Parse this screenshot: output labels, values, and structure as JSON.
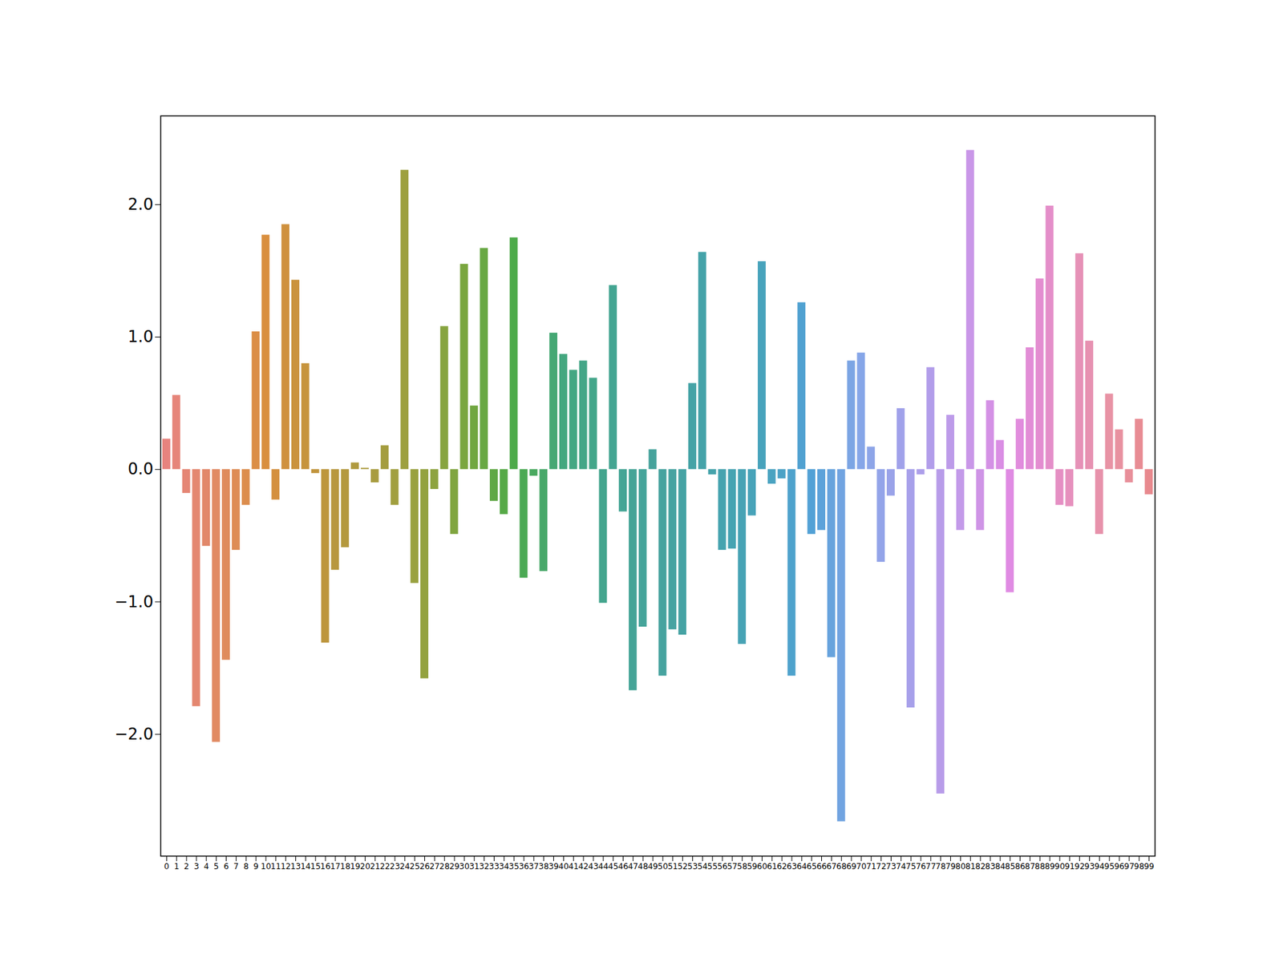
{
  "chart_data": {
    "type": "bar",
    "categories": [
      "0",
      "1",
      "2",
      "3",
      "4",
      "5",
      "6",
      "7",
      "8",
      "9",
      "10",
      "11",
      "12",
      "13",
      "14",
      "15",
      "16",
      "17",
      "18",
      "19",
      "20",
      "21",
      "22",
      "23",
      "24",
      "25",
      "26",
      "27",
      "28",
      "29",
      "30",
      "31",
      "32",
      "33",
      "34",
      "35",
      "36",
      "37",
      "38",
      "39",
      "40",
      "41",
      "42",
      "43",
      "44",
      "45",
      "46",
      "47",
      "48",
      "49",
      "50",
      "51",
      "52",
      "53",
      "54",
      "55",
      "56",
      "57",
      "58",
      "59",
      "60",
      "61",
      "62",
      "63",
      "64",
      "65",
      "66",
      "67",
      "68",
      "69",
      "70",
      "71",
      "72",
      "73",
      "74",
      "75",
      "76",
      "77",
      "78",
      "79",
      "80",
      "81",
      "82",
      "83",
      "84",
      "85",
      "86",
      "87",
      "88",
      "89",
      "90",
      "91",
      "92",
      "93",
      "94",
      "95",
      "96",
      "97",
      "98",
      "99"
    ],
    "values": [
      0.23,
      0.56,
      -0.18,
      -1.79,
      -0.58,
      -2.06,
      -1.44,
      -0.61,
      -0.27,
      1.04,
      1.77,
      -0.23,
      1.85,
      1.43,
      0.8,
      -0.03,
      -1.31,
      -0.76,
      -0.59,
      0.05,
      0.01,
      -0.1,
      0.18,
      -0.27,
      2.26,
      -0.86,
      -1.58,
      -0.15,
      1.08,
      -0.49,
      1.55,
      0.48,
      1.67,
      -0.24,
      -0.34,
      1.75,
      -0.82,
      -0.05,
      -0.77,
      1.03,
      0.87,
      0.75,
      0.82,
      0.69,
      -1.01,
      1.39,
      -0.32,
      -1.67,
      -1.19,
      0.15,
      -1.56,
      -1.21,
      -1.25,
      0.65,
      1.64,
      -0.04,
      -0.61,
      -0.6,
      -1.32,
      -0.35,
      1.57,
      -0.11,
      -0.07,
      -1.56,
      1.26,
      -0.49,
      -0.46,
      -1.42,
      -2.66,
      0.82,
      0.88,
      0.17,
      -0.7,
      -0.2,
      0.46,
      -1.8,
      -0.04,
      0.77,
      -2.45,
      0.41,
      -0.46,
      2.41,
      -0.46,
      0.52,
      0.22,
      -0.93,
      0.38,
      0.92,
      1.44,
      1.99,
      -0.27,
      -0.28,
      1.63,
      0.97,
      -0.49,
      0.57,
      0.3,
      -0.1,
      0.38,
      -0.19
    ],
    "colors": [
      "#e7837e",
      "#e6857a",
      "#e58675",
      "#e48770",
      "#e2886a",
      "#e18a63",
      "#df8b5c",
      "#de8c55",
      "#dc8d4d",
      "#db8e46",
      "#d98f3f",
      "#d4903f",
      "#cf913e",
      "#ca933e",
      "#c6943d",
      "#c1953d",
      "#bd963d",
      "#b8973e",
      "#b4993e",
      "#b09a3f",
      "#ac9b3f",
      "#a89c3f",
      "#a49d3f",
      "#a19f3f",
      "#9da03f",
      "#99a13f",
      "#93a23f",
      "#8da33f",
      "#87a43f",
      "#80a53f",
      "#7aa63f",
      "#71a741",
      "#68a843",
      "#5fa845",
      "#56a947",
      "#4daa49",
      "#4ba954",
      "#49a95f",
      "#48a869",
      "#46a874",
      "#44a77f",
      "#44a783",
      "#44a687",
      "#44a68a",
      "#44a58e",
      "#44a592",
      "#44a595",
      "#45a497",
      "#45a49a",
      "#46a39c",
      "#46a39f",
      "#46a3a1",
      "#46a3a4",
      "#45a3a6",
      "#45a3a9",
      "#45a3ab",
      "#46a3af",
      "#46a3b2",
      "#47a3b5",
      "#47a3b9",
      "#48a3bc",
      "#4aa3c1",
      "#4ca2c6",
      "#4ea2cc",
      "#50a1d1",
      "#52a1d6",
      "#5ca2da",
      "#67a3dd",
      "#71a4e1",
      "#7ca5e4",
      "#86a6e8",
      "#8da5e8",
      "#93a4e9",
      "#9aa3e9",
      "#a0a1ea",
      "#a7a0ea",
      "#ad9fea",
      "#b29dea",
      "#b89ce9",
      "#bd9be9",
      "#c39ae9",
      "#c997e8",
      "#cf94e6",
      "#d491e5",
      "#da8ee4",
      "#e08be3",
      "#e18cdd",
      "#e28dd6",
      "#e38dd0",
      "#e48ec9",
      "#e58fc3",
      "#e690bd",
      "#e691b7",
      "#e791b1",
      "#e792ab",
      "#e893a5",
      "#e891a0",
      "#e88f9a",
      "#e88c94",
      "#e8898e"
    ],
    "ylim": [
      -2.92,
      2.67
    ],
    "yticks": [
      -2,
      -1,
      0,
      1,
      2
    ]
  }
}
